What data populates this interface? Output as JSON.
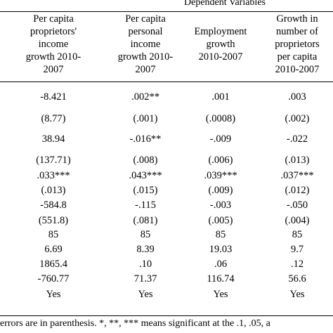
{
  "header": {
    "supertitle": "Dependent Variables",
    "columns": [
      [
        "Per capita",
        "proprietors'",
        "income",
        "growth 2010-",
        "2007"
      ],
      [
        "Per capita",
        "personal",
        "income",
        "growth 2010-",
        "2007"
      ],
      [
        "Employment",
        "growth",
        "2010-2007"
      ],
      [
        "Growth in",
        "number of",
        "proprietors",
        "per capita",
        "2010-2007"
      ]
    ]
  },
  "rows": [
    [
      "-8.421",
      ".002**",
      ".001",
      ".003"
    ],
    [
      "(8.77)",
      "(.001)",
      "(.0008)",
      "(.002)"
    ],
    [
      "38.94",
      "-.016**",
      "-.009",
      "-.022"
    ],
    [
      "(137.71)",
      "(.008)",
      "(.006)",
      "(.013)"
    ],
    [
      ".033***",
      ".043***",
      ".039***",
      ".037***"
    ],
    [
      "(.013)",
      "(.015)",
      "(.009)",
      "(.012)"
    ],
    [
      "-584.8",
      "-.115",
      "-.003",
      "-.050"
    ],
    [
      "(551.8)",
      "(.081)",
      "(.005)",
      "(.004)"
    ],
    [
      "85",
      "85",
      "85",
      "85"
    ],
    [
      "6.69",
      "8.39",
      "19.03",
      "9.7"
    ],
    [
      "1865.4",
      ".10",
      ".06",
      ".12"
    ],
    [
      "-760.77",
      "71.37",
      "116.74",
      "56.6"
    ],
    [
      "Yes",
      "Yes",
      "Yes",
      "Yes"
    ]
  ],
  "footnote": "errors are in parenthesis. *, **, *** means significant at the .1, .05, a"
}
